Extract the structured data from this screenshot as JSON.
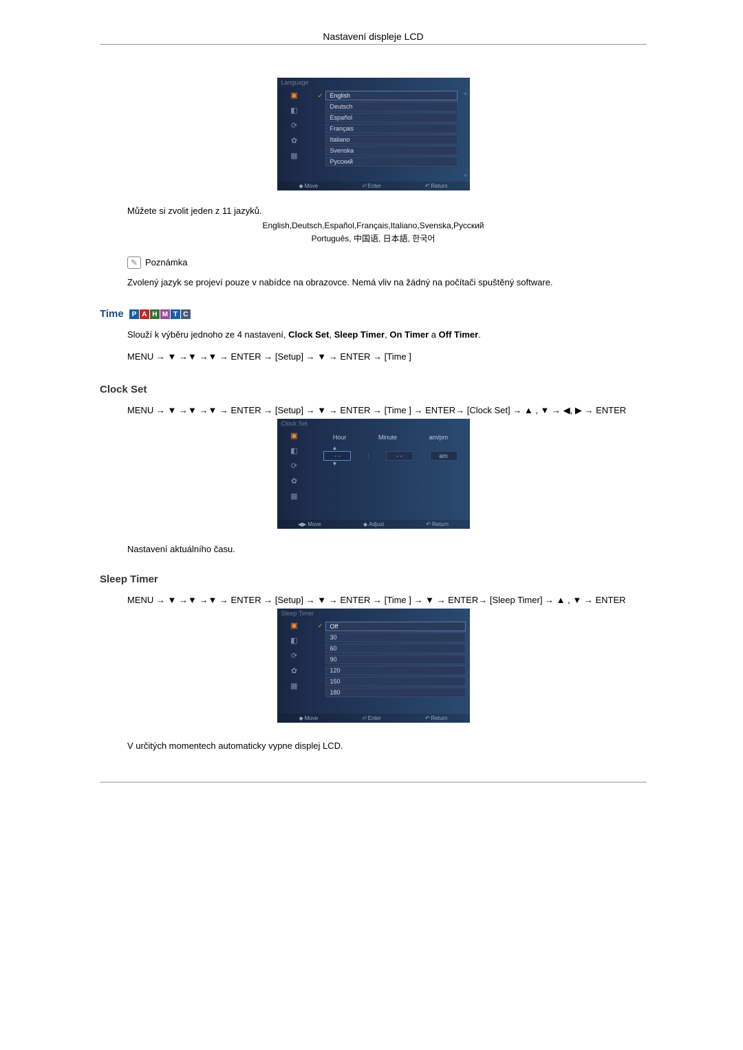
{
  "header": {
    "title": "Nastavení displeje LCD"
  },
  "language_osd": {
    "title": "Language",
    "items": [
      "English",
      "Deutsch",
      "Español",
      "Français",
      "Italiano",
      "Svenska",
      "Русский"
    ],
    "selected_index": 0,
    "footer": {
      "move": "Move",
      "enter": "Enter",
      "return": "Return"
    },
    "sidebar_icons": [
      "picture",
      "display",
      "refresh",
      "gear",
      "multi"
    ]
  },
  "text": {
    "intro": "Můžete si zvolit jeden z 11 jazyků.",
    "lang_line1": "English,Deutsch,Español,Français,Italiano,Svenska,Русский",
    "lang_line2": "Português, 中国语, 日本語, 한국어",
    "note_label": "Poznámka",
    "note_body": "Zvolený jazyk se projeví pouze v nabídce na obrazovce. Nemá vliv na žádný na počítači spuštěný software."
  },
  "time_section": {
    "heading": "Time",
    "badges": [
      {
        "letter": "P",
        "color": "#1a5da8"
      },
      {
        "letter": "A",
        "color": "#c22828"
      },
      {
        "letter": "H",
        "color": "#3a6e3a"
      },
      {
        "letter": "M",
        "color": "#9a4a9a"
      },
      {
        "letter": "T",
        "color": "#1a5da8"
      },
      {
        "letter": "C",
        "color": "#4a5a7a"
      }
    ],
    "desc_prefix": "Slouží k výběru jednoho ze 4 nastavení, ",
    "desc_items": [
      "Clock Set",
      "Sleep Timer",
      "On Timer",
      "Off Timer"
    ],
    "nav": "MENU → ▼ →▼ →▼ → ENTER → [Setup] → ▼ → ENTER → [Time ]"
  },
  "clock_set": {
    "heading": "Clock Set",
    "nav1": "MENU → ▼ →▼ →▼ → ENTER → [Setup] → ▼ → ENTER → [Time ] → ENTER→ [Clock Set] → ▲ , ▼ → ◀, ▶ → ENTER",
    "osd": {
      "title": "Clock Set",
      "headers": [
        "Hour",
        "Minute",
        "am/pm"
      ],
      "values": [
        "- -",
        "- -",
        "am"
      ],
      "footer": {
        "move": "Move",
        "adjust": "Adjust",
        "return": "Return"
      }
    },
    "after": "Nastavení aktuálního času."
  },
  "sleep_timer": {
    "heading": "Sleep Timer",
    "nav": "MENU → ▼ →▼ →▼ → ENTER → [Setup] → ▼ → ENTER → [Time ] → ▼ → ENTER→ [Sleep Timer] → ▲ , ▼ → ENTER",
    "osd": {
      "title": "Sleep Timer",
      "items": [
        "Off",
        "30",
        "60",
        "90",
        "120",
        "150",
        "180"
      ],
      "selected_index": 0,
      "footer": {
        "move": "Move",
        "enter": "Enter",
        "return": "Return"
      }
    },
    "after": "V určitých momentech automaticky vypne displej LCD."
  },
  "icon_glyphs": {
    "picture": "▣",
    "display": "◧",
    "refresh": "⟳",
    "gear": "✿",
    "multi": "▦"
  }
}
